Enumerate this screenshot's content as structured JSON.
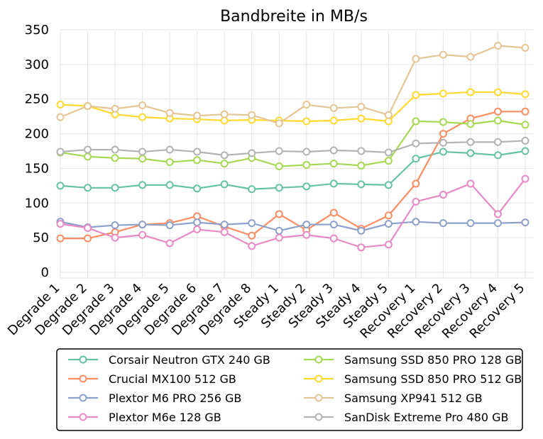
{
  "chart_data": {
    "type": "line",
    "title": "Bandbreite in MB/s",
    "xlabel": "",
    "ylabel": "",
    "ylim": [
      0,
      350
    ],
    "yticks": [
      0,
      50,
      100,
      150,
      200,
      250,
      300,
      350
    ],
    "grid": true,
    "legend_position": "bottom",
    "categories": [
      "Degrade 1",
      "Degrade 2",
      "Degrade 3",
      "Degrade 4",
      "Degrade 5",
      "Degrade 6",
      "Degrade 7",
      "Degrade 8",
      "Steady 1",
      "Steady 2",
      "Steady 3",
      "Steady 4",
      "Steady 5",
      "Recovery 1",
      "Recovery 2",
      "Recovery 3",
      "Recovery 4",
      "Recovery 5"
    ],
    "series": [
      {
        "name": "Corsair Neutron GTX 240 GB",
        "color": "#66c2a5",
        "values": [
          125,
          122,
          122,
          126,
          126,
          121,
          127,
          120,
          122,
          124,
          128,
          127,
          126,
          164,
          174,
          172,
          169,
          175
        ]
      },
      {
        "name": "Crucial MX100 512 GB",
        "color": "#fc8d62",
        "values": [
          49,
          49,
          58,
          69,
          71,
          81,
          66,
          53,
          84,
          61,
          86,
          63,
          82,
          128,
          200,
          222,
          232,
          232
        ]
      },
      {
        "name": "Plextor M6 PRO 256 GB",
        "color": "#8da0cb",
        "values": [
          73,
          65,
          68,
          69,
          68,
          72,
          69,
          71,
          60,
          69,
          69,
          60,
          70,
          73,
          71,
          71,
          71,
          72
        ]
      },
      {
        "name": "Plextor M6e 128 GB",
        "color": "#e78ac3",
        "values": [
          70,
          64,
          50,
          54,
          42,
          62,
          58,
          38,
          50,
          54,
          49,
          36,
          40,
          102,
          112,
          128,
          84,
          135
        ]
      },
      {
        "name": "Samsung SSD 850 PRO 128 GB",
        "color": "#a6d854",
        "values": [
          173,
          167,
          165,
          164,
          159,
          162,
          157,
          165,
          153,
          155,
          157,
          154,
          161,
          218,
          217,
          214,
          219,
          213
        ]
      },
      {
        "name": "Samsung SSD 850 PRO 512 GB",
        "color": "#ffd92f",
        "values": [
          242,
          240,
          228,
          224,
          222,
          221,
          219,
          220,
          219,
          218,
          219,
          222,
          218,
          256,
          258,
          260,
          260,
          257
        ]
      },
      {
        "name": "Samsung XP941 512 GB",
        "color": "#e5c494",
        "values": [
          224,
          240,
          236,
          241,
          230,
          226,
          228,
          227,
          215,
          242,
          237,
          239,
          227,
          308,
          314,
          311,
          327,
          324
        ]
      },
      {
        "name": "SanDisk Extreme Pro 480 GB",
        "color": "#b3b3b3",
        "values": [
          174,
          177,
          177,
          174,
          177,
          174,
          169,
          172,
          175,
          174,
          176,
          175,
          173,
          186,
          187,
          188,
          188,
          190
        ]
      }
    ]
  }
}
